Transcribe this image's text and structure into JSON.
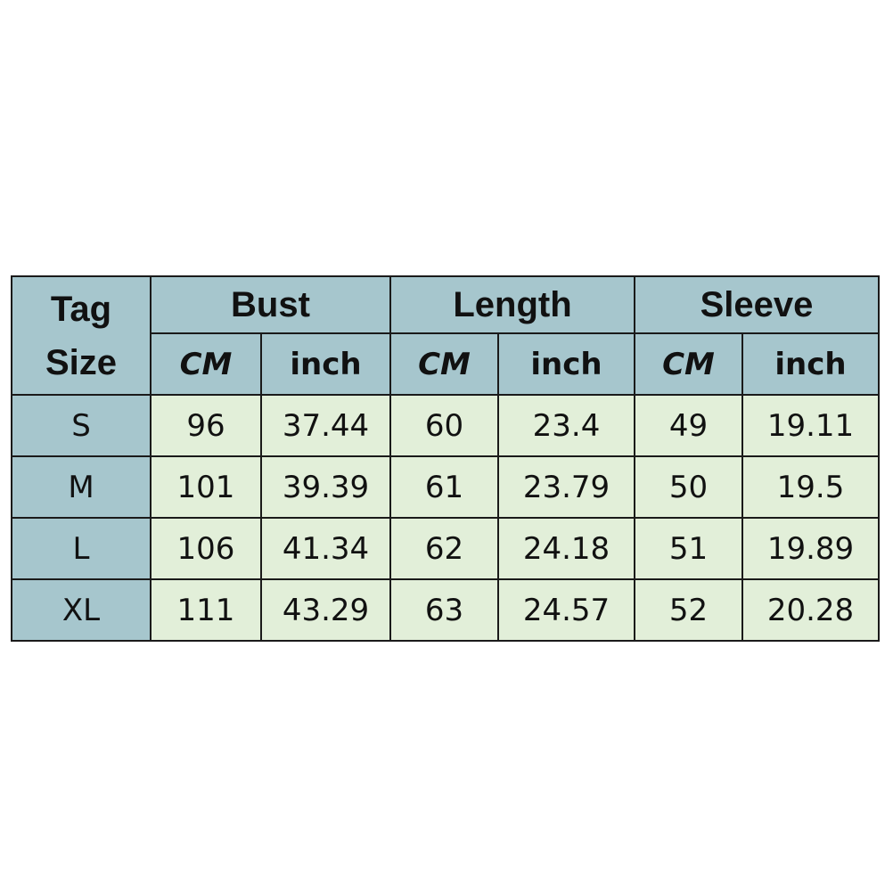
{
  "header": {
    "tag_size": [
      "Tag",
      "Size"
    ],
    "groups": [
      "Bust",
      "Length",
      "Sleeve"
    ],
    "units": [
      "CM",
      "inch",
      "CM",
      "inch",
      "CM",
      "inch"
    ]
  },
  "colors": {
    "header_bg": "#a6c6cd",
    "cell_bg": "#e2efd9",
    "border": "#1a1a1a"
  },
  "rows": [
    {
      "size": "S",
      "values": [
        "96",
        "37.44",
        "60",
        "23.4",
        "49",
        "19.11"
      ]
    },
    {
      "size": "M",
      "values": [
        "101",
        "39.39",
        "61",
        "23.79",
        "50",
        "19.5"
      ]
    },
    {
      "size": "L",
      "values": [
        "106",
        "41.34",
        "62",
        "24.18",
        "51",
        "19.89"
      ]
    },
    {
      "size": "XL",
      "values": [
        "111",
        "43.29",
        "63",
        "24.57",
        "52",
        "20.28"
      ]
    }
  ]
}
